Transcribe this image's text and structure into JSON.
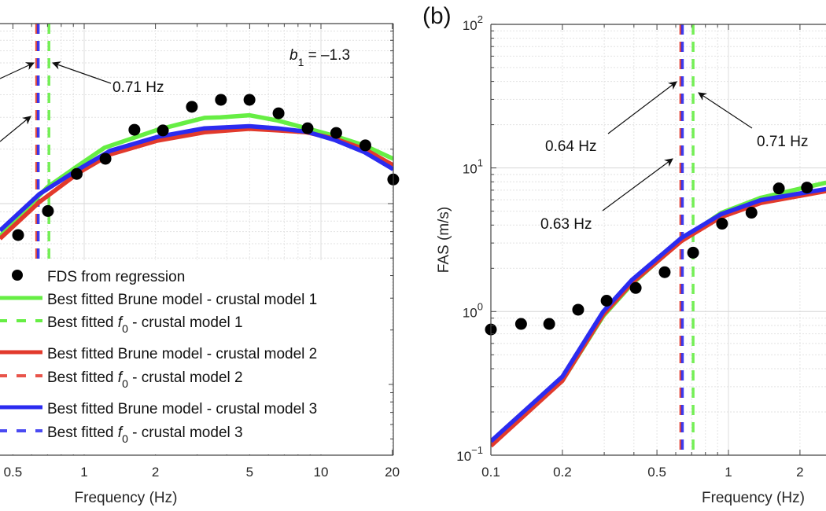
{
  "chart_data": [
    {
      "id": "a",
      "type": "scatter+line",
      "panel_label": "",
      "xscale": "log",
      "yscale": "log",
      "xlim": [
        0.44,
        20.2
      ],
      "ylim_log10": [
        -1.39,
        1.0
      ],
      "xlabel": "Frequency (Hz)",
      "ylabel": "",
      "xticks": [
        {
          "value": 0.5,
          "label": "0.5"
        },
        {
          "value": 1,
          "label": "1"
        },
        {
          "value": 2,
          "label": "2"
        },
        {
          "value": 5,
          "label": "5"
        },
        {
          "value": 10,
          "label": "10"
        },
        {
          "value": 20,
          "label": "20"
        }
      ],
      "yticks": [],
      "grid": true,
      "annotation_b1": {
        "symbol": "b",
        "subscript": "1",
        "text": " = –1.3"
      },
      "series": [
        {
          "name": "FDS from regression",
          "kind": "points",
          "color": "#000000",
          "points": [
            [
              0.526,
              0.67
            ],
            [
              0.703,
              0.91
            ],
            [
              0.93,
              1.46
            ],
            [
              1.23,
              1.77
            ],
            [
              1.63,
              2.56
            ],
            [
              2.15,
              2.54
            ],
            [
              2.85,
              3.43
            ],
            [
              3.78,
              3.75
            ],
            [
              4.99,
              3.75
            ],
            [
              6.62,
              3.16
            ],
            [
              8.78,
              2.61
            ],
            [
              11.6,
              2.46
            ],
            [
              15.4,
              2.1
            ],
            [
              20.2,
              1.36
            ]
          ]
        },
        {
          "name": "Best fitted Brune model - crustal model 1",
          "kind": "line",
          "color": "#66ee44",
          "points": [
            [
              0.441,
              0.66
            ],
            [
              0.698,
              1.23
            ],
            [
              0.948,
              1.63
            ],
            [
              1.22,
              2.04
            ],
            [
              2.04,
              2.56
            ],
            [
              3.22,
              2.98
            ],
            [
              3.76,
              3.0
            ],
            [
              4.98,
              3.08
            ],
            [
              6.56,
              2.88
            ],
            [
              8.7,
              2.61
            ],
            [
              11.5,
              2.36
            ],
            [
              15.2,
              2.1
            ],
            [
              20.2,
              1.77
            ]
          ]
        },
        {
          "name": "Best fitted Brune model - crustal model 2",
          "kind": "line",
          "color": "#e23a2c",
          "points": [
            [
              0.441,
              0.64
            ],
            [
              0.647,
              1.02
            ],
            [
              0.948,
              1.48
            ],
            [
              1.287,
              1.87
            ],
            [
              2.04,
              2.23
            ],
            [
              3.22,
              2.48
            ],
            [
              4.98,
              2.59
            ],
            [
              6.56,
              2.54
            ],
            [
              8.7,
              2.48
            ],
            [
              11.5,
              2.28
            ],
            [
              15.2,
              2.01
            ],
            [
              20.2,
              1.63
            ]
          ]
        },
        {
          "name": "Best fitted Brune model - crustal model 3",
          "kind": "line",
          "color": "#2b2bf0",
          "points": [
            [
              0.441,
              0.71
            ],
            [
              0.647,
              1.13
            ],
            [
              0.948,
              1.55
            ],
            [
              1.287,
              1.96
            ],
            [
              2.04,
              2.34
            ],
            [
              3.22,
              2.61
            ],
            [
              4.98,
              2.68
            ],
            [
              6.56,
              2.61
            ],
            [
              8.7,
              2.5
            ],
            [
              11.5,
              2.24
            ],
            [
              15.2,
              1.93
            ],
            [
              20.2,
              1.55
            ]
          ]
        }
      ],
      "f0_lines": [
        {
          "name": "Best fitted f0 - crustal model 1",
          "value": 0.71,
          "color": "#66ee44"
        },
        {
          "name": "Best fitted f0 - crustal model 2",
          "value": 0.63,
          "color": "#e23a2c"
        },
        {
          "name": "Best fitted f0 - crustal model 3",
          "value": 0.64,
          "color": "#2b2bf0"
        }
      ],
      "annotations": [
        {
          "text": "0.71 Hz",
          "target_f": 0.71
        }
      ],
      "legend": {
        "placement": "bottom-left",
        "entries": [
          {
            "kind": "marker",
            "color": "#000000",
            "label": "FDS from regression"
          },
          {
            "kind": "solid",
            "color": "#66ee44",
            "label": "Best fitted Brune model - crustal model 1"
          },
          {
            "kind": "dashed",
            "color": "#66ee44",
            "label_pre": "Best fitted ",
            "label_f": "f",
            "label_sub": "0",
            "label_post": " - crustal model 1"
          },
          {
            "kind": "solid",
            "color": "#e23a2c",
            "label": "Best fitted Brune model - crustal model 2"
          },
          {
            "kind": "dashed",
            "color": "#e8544a",
            "label_pre": "Best fitted ",
            "label_f": "f",
            "label_sub": "0",
            "label_post": " - crustal model 2"
          },
          {
            "kind": "solid",
            "color": "#2b2bf0",
            "label": "Best fitted Brune model - crustal model 3"
          },
          {
            "kind": "dashed",
            "color": "#4a4af2",
            "label_pre": "Best fitted ",
            "label_f": "f",
            "label_sub": "0",
            "label_post": " - crustal model 3"
          }
        ]
      }
    },
    {
      "id": "b",
      "type": "scatter+line",
      "panel_label": "(b)",
      "xscale": "log",
      "yscale": "log",
      "xlim": [
        0.1,
        2.6
      ],
      "ylim": [
        0.1,
        100
      ],
      "xlabel": "Frequency (Hz)",
      "ylabel": "FAS (m/s)",
      "xticks": [
        {
          "value": 0.1,
          "label": "0.1"
        },
        {
          "value": 0.2,
          "label": "0.2"
        },
        {
          "value": 0.5,
          "label": "0.5"
        },
        {
          "value": 1,
          "label": "1"
        },
        {
          "value": 2,
          "label": "2"
        }
      ],
      "yticks": [
        {
          "value": 0.1,
          "base": "10",
          "exp": "−1"
        },
        {
          "value": 1,
          "base": "10",
          "exp": "0"
        },
        {
          "value": 10,
          "base": "10",
          "exp": "1"
        },
        {
          "value": 100,
          "base": "10",
          "exp": "2"
        }
      ],
      "grid": true,
      "series": [
        {
          "name": "FDS from regression",
          "kind": "points",
          "color": "#000000",
          "points": [
            [
              0.1,
              0.75
            ],
            [
              0.134,
              0.82
            ],
            [
              0.176,
              0.82
            ],
            [
              0.233,
              1.03
            ],
            [
              0.307,
              1.19
            ],
            [
              0.407,
              1.46
            ],
            [
              0.539,
              1.88
            ],
            [
              0.71,
              2.57
            ],
            [
              0.94,
              4.09
            ],
            [
              1.25,
              4.88
            ],
            [
              1.63,
              7.2
            ],
            [
              2.14,
              7.3
            ]
          ]
        },
        {
          "name": "Best fitted Brune model - crustal model 1",
          "kind": "line",
          "color": "#66ee44",
          "points": [
            [
              0.1,
              0.122
            ],
            [
              0.2,
              0.33
            ],
            [
              0.297,
              0.93
            ],
            [
              0.392,
              1.55
            ],
            [
              0.635,
              3.15
            ],
            [
              0.93,
              4.85
            ],
            [
              1.37,
              6.2
            ],
            [
              2.58,
              7.9
            ]
          ]
        },
        {
          "name": "Best fitted Brune model - crustal model 2",
          "kind": "line",
          "color": "#e23a2c",
          "points": [
            [
              0.1,
              0.116
            ],
            [
              0.2,
              0.33
            ],
            [
              0.297,
              0.95
            ],
            [
              0.392,
              1.58
            ],
            [
              0.635,
              3.1
            ],
            [
              0.93,
              4.55
            ],
            [
              1.37,
              5.7
            ],
            [
              2.58,
              6.9
            ]
          ]
        },
        {
          "name": "Best fitted Brune model - crustal model 3",
          "kind": "line",
          "color": "#2b2bf0",
          "points": [
            [
              0.1,
              0.125
            ],
            [
              0.2,
              0.352
            ],
            [
              0.297,
              1.0
            ],
            [
              0.392,
              1.66
            ],
            [
              0.635,
              3.26
            ],
            [
              0.93,
              4.76
            ],
            [
              1.37,
              5.97
            ],
            [
              2.58,
              7.13
            ]
          ]
        }
      ],
      "f0_lines": [
        {
          "name": "Best fitted f0 - crustal model 1",
          "value": 0.71,
          "color": "#66ee44"
        },
        {
          "name": "Best fitted f0 - crustal model 2",
          "value": 0.63,
          "color": "#e23a2c"
        },
        {
          "name": "Best fitted f0 - crustal model 3",
          "value": 0.64,
          "color": "#2b2bf0"
        }
      ],
      "annotations": [
        {
          "text": "0.64 Hz",
          "target_f": 0.64
        },
        {
          "text": "0.63 Hz",
          "target_f": 0.63
        },
        {
          "text": "0.71 Hz",
          "target_f": 0.71
        }
      ]
    }
  ]
}
